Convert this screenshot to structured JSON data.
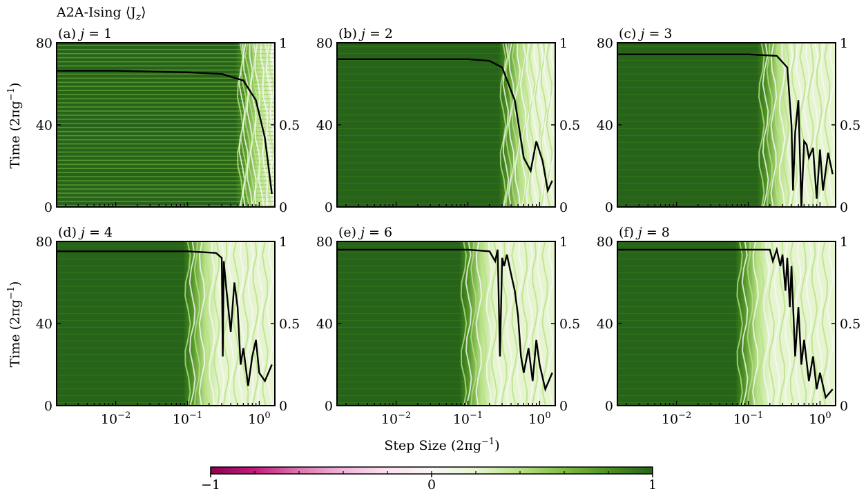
{
  "figure": {
    "title": "A2A-Ising ⟨J",
    "title_sub": "z",
    "title_end": "⟩",
    "xlabel_main": "Step Size (2πg",
    "xlabel_sup": "−1",
    "xlabel_end": ")",
    "ylabel_main": "Time (2πg",
    "ylabel_sup": "−1",
    "ylabel_end": ")"
  },
  "colorbar": {
    "colormap": "PiYG",
    "colors": [
      "#8e0152",
      "#c51b7d",
      "#de77ae",
      "#f1b6da",
      "#fde0ef",
      "#f7f7f7",
      "#e6f5d0",
      "#b8e186",
      "#7fbc41",
      "#4d9221",
      "#276419"
    ],
    "min": -1,
    "max": 1,
    "tick_labels": [
      "−1",
      "0",
      "1"
    ],
    "tick_values": [
      -1,
      0,
      1
    ]
  },
  "chart_data": [
    {
      "type": "heatmap",
      "panel": "(a)",
      "label_j": "j",
      "label_eq": " = 1",
      "x_scale": "log",
      "x_ticks": [
        "10−2",
        "10−1",
        "100"
      ],
      "x_tick_values": [
        0.01,
        0.1,
        1
      ],
      "y_ticks": [
        "0",
        "40",
        "80"
      ],
      "y_tick_values": [
        0,
        40,
        80
      ],
      "ylim": [
        0,
        80
      ],
      "y2_ticks": [
        "0",
        "0.5",
        "1"
      ],
      "y2_tick_values": [
        0,
        0.5,
        1
      ],
      "y2lim": [
        0,
        1
      ],
      "overlay_line": {
        "x": [
          0.0015,
          0.01,
          0.1,
          0.3,
          0.6,
          0.9,
          1.2,
          1.5
        ],
        "y": [
          0.83,
          0.83,
          0.82,
          0.81,
          0.77,
          0.65,
          0.42,
          0.08
        ]
      }
    },
    {
      "type": "heatmap",
      "panel": "(b)",
      "label_j": "j",
      "label_eq": " = 2",
      "x_scale": "log",
      "x_ticks": [
        "10−2",
        "10−1",
        "100"
      ],
      "x_tick_values": [
        0.01,
        0.1,
        1
      ],
      "y_ticks": [
        "0",
        "40",
        "80"
      ],
      "y_tick_values": [
        0,
        40,
        80
      ],
      "ylim": [
        0,
        80
      ],
      "y2_ticks": [
        "0",
        "0.5",
        "1"
      ],
      "y2_tick_values": [
        0,
        0.5,
        1
      ],
      "y2lim": [
        0,
        1
      ],
      "overlay_line": {
        "x": [
          0.0015,
          0.01,
          0.1,
          0.2,
          0.3,
          0.45,
          0.6,
          0.75,
          0.9,
          1.1,
          1.3,
          1.5
        ],
        "y": [
          0.9,
          0.9,
          0.9,
          0.89,
          0.85,
          0.65,
          0.3,
          0.22,
          0.4,
          0.28,
          0.1,
          0.16
        ]
      }
    },
    {
      "type": "heatmap",
      "panel": "(c)",
      "label_j": "j",
      "label_eq": " = 3",
      "x_scale": "log",
      "x_ticks": [
        "10−2",
        "10−1",
        "100"
      ],
      "x_tick_values": [
        0.01,
        0.1,
        1
      ],
      "y_ticks": [
        "0",
        "40",
        "80"
      ],
      "y_tick_values": [
        0,
        40,
        80
      ],
      "ylim": [
        0,
        80
      ],
      "y2_ticks": [
        "0",
        "0.5",
        "1"
      ],
      "y2_tick_values": [
        0,
        0.5,
        1
      ],
      "y2lim": [
        0,
        1
      ],
      "overlay_line": {
        "x": [
          0.0015,
          0.01,
          0.1,
          0.25,
          0.35,
          0.4,
          0.42,
          0.45,
          0.5,
          0.55,
          0.6,
          0.65,
          0.7,
          0.8,
          0.9,
          1.0,
          1.1,
          1.3,
          1.5
        ],
        "y": [
          0.93,
          0.93,
          0.93,
          0.92,
          0.85,
          0.5,
          0.1,
          0.45,
          0.65,
          0.0,
          0.4,
          0.38,
          0.3,
          0.36,
          0.05,
          0.35,
          0.1,
          0.33,
          0.2
        ]
      }
    },
    {
      "type": "heatmap",
      "panel": "(d)",
      "label_j": "j",
      "label_eq": " = 4",
      "x_scale": "log",
      "x_ticks": [
        "10−2",
        "10−1",
        "100"
      ],
      "x_tick_values": [
        0.01,
        0.1,
        1
      ],
      "y_ticks": [
        "0",
        "40",
        "80"
      ],
      "y_tick_values": [
        0,
        40,
        80
      ],
      "ylim": [
        0,
        80
      ],
      "y2_ticks": [
        "0",
        "0.5",
        "1"
      ],
      "y2_tick_values": [
        0,
        0.5,
        1
      ],
      "y2lim": [
        0,
        1
      ],
      "overlay_line": {
        "x": [
          0.0015,
          0.01,
          0.1,
          0.25,
          0.3,
          0.31,
          0.32,
          0.35,
          0.4,
          0.45,
          0.5,
          0.55,
          0.6,
          0.7,
          0.8,
          0.9,
          1.0,
          1.2,
          1.5
        ],
        "y": [
          0.94,
          0.94,
          0.94,
          0.93,
          0.9,
          0.3,
          0.88,
          0.7,
          0.45,
          0.75,
          0.6,
          0.25,
          0.35,
          0.12,
          0.3,
          0.4,
          0.2,
          0.15,
          0.25
        ]
      }
    },
    {
      "type": "heatmap",
      "panel": "(e)",
      "label_j": "j",
      "label_eq": " = 6",
      "x_scale": "log",
      "x_ticks": [
        "10−2",
        "10−1",
        "100"
      ],
      "x_tick_values": [
        0.01,
        0.1,
        1
      ],
      "y_ticks": [
        "0",
        "40",
        "80"
      ],
      "y_tick_values": [
        0,
        40,
        80
      ],
      "ylim": [
        0,
        80
      ],
      "y2_ticks": [
        "0",
        "0.5",
        "1"
      ],
      "y2_tick_values": [
        0,
        0.5,
        1
      ],
      "y2lim": [
        0,
        1
      ],
      "overlay_line": {
        "x": [
          0.0015,
          0.01,
          0.1,
          0.2,
          0.24,
          0.26,
          0.28,
          0.3,
          0.32,
          0.35,
          0.4,
          0.45,
          0.5,
          0.55,
          0.6,
          0.7,
          0.8,
          0.9,
          1.0,
          1.2,
          1.5
        ],
        "y": [
          0.95,
          0.95,
          0.95,
          0.94,
          0.88,
          0.95,
          0.3,
          0.9,
          0.85,
          0.92,
          0.8,
          0.7,
          0.55,
          0.3,
          0.2,
          0.35,
          0.15,
          0.4,
          0.25,
          0.1,
          0.2
        ]
      }
    },
    {
      "type": "heatmap",
      "panel": "(f)",
      "label_j": "j",
      "label_eq": " = 8",
      "x_scale": "log",
      "x_ticks": [
        "10−2",
        "10−1",
        "100"
      ],
      "x_tick_values": [
        0.01,
        0.1,
        1
      ],
      "y_ticks": [
        "0",
        "40",
        "80"
      ],
      "y_tick_values": [
        0,
        40,
        80
      ],
      "ylim": [
        0,
        80
      ],
      "y2_ticks": [
        "0",
        "0.5",
        "1"
      ],
      "y2_tick_values": [
        0,
        0.5,
        1
      ],
      "y2lim": [
        0,
        1
      ],
      "overlay_line": {
        "x": [
          0.0015,
          0.01,
          0.1,
          0.2,
          0.22,
          0.25,
          0.28,
          0.3,
          0.33,
          0.35,
          0.38,
          0.4,
          0.45,
          0.5,
          0.55,
          0.6,
          0.7,
          0.8,
          0.9,
          1.0,
          1.2,
          1.5
        ],
        "y": [
          0.95,
          0.95,
          0.95,
          0.95,
          0.88,
          0.95,
          0.85,
          0.92,
          0.7,
          0.9,
          0.6,
          0.85,
          0.3,
          0.6,
          0.25,
          0.4,
          0.15,
          0.3,
          0.1,
          0.2,
          0.05,
          0.1
        ]
      }
    }
  ]
}
